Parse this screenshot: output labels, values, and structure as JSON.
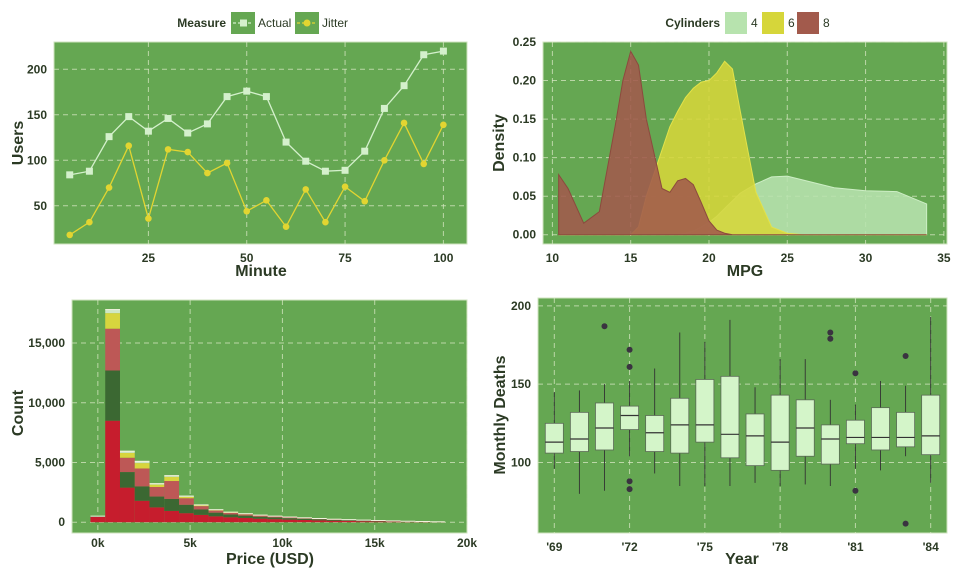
{
  "colors": {
    "panel": "#65a752",
    "frame": "#cfe3bf",
    "text": "#2b3a24",
    "actual": "#d4f0cc",
    "jitter": "#e2d531",
    "cyl4": "#b7e3ae",
    "cyl6": "#d6d63a",
    "cyl8": "#a25a4c",
    "hist_red": "#c61d2d",
    "hist_green": "#3b6832",
    "hist_rose": "#bd5856",
    "hist_yellow": "#d7d53e",
    "hist_pale": "#cfe7c4",
    "box_fill": "#d4f5c9",
    "box_line": "#333333",
    "outlier": "#3a3340"
  },
  "chart_data": [
    {
      "id": "users-line",
      "type": "line",
      "legend_title": "Measure",
      "xlabel": "Minute",
      "ylabel": "Users",
      "xlim": [
        1,
        106
      ],
      "ylim": [
        8,
        230
      ],
      "xticks": [
        25,
        50,
        75,
        100
      ],
      "yticks": [
        50,
        100,
        150,
        200
      ],
      "x": [
        5,
        10,
        15,
        20,
        25,
        30,
        35,
        40,
        45,
        50,
        55,
        60,
        65,
        70,
        75,
        80,
        85,
        90,
        95,
        100
      ],
      "series": [
        {
          "name": "Actual",
          "values": [
            84,
            88,
            126,
            148,
            132,
            146,
            130,
            140,
            170,
            176,
            170,
            120,
            99,
            88,
            89,
            110,
            157,
            182,
            216,
            220
          ]
        },
        {
          "name": "Jitter",
          "values": [
            18,
            32,
            70,
            116,
            36,
            112,
            109,
            86,
            97,
            44,
            56,
            27,
            68,
            32,
            71,
            55,
            100,
            141,
            96,
            139
          ]
        }
      ]
    },
    {
      "id": "mpg-density",
      "type": "area",
      "legend_title": "Cylinders",
      "xlabel": "MPG",
      "ylabel": "Density",
      "xlim": [
        9.4,
        35.2
      ],
      "ylim": [
        -0.012,
        0.25
      ],
      "xticks": [
        10,
        15,
        20,
        25,
        30,
        35
      ],
      "yticks": [
        0.0,
        0.05,
        0.1,
        0.15,
        0.2,
        0.25
      ],
      "x": [
        10.4,
        11,
        12,
        13,
        14,
        14.5,
        15,
        15.5,
        16,
        17,
        17.5,
        18,
        18.5,
        19,
        19.5,
        20,
        20.5,
        21,
        21.5,
        22,
        23,
        24,
        25,
        26,
        28,
        30,
        32,
        33.9
      ],
      "series": [
        {
          "name": "4",
          "values": [
            0,
            0,
            0,
            0,
            0,
            0,
            0,
            0,
            0,
            0,
            0,
            0,
            0.002,
            0.005,
            0.01,
            0.016,
            0.024,
            0.034,
            0.044,
            0.054,
            0.066,
            0.075,
            0.076,
            0.071,
            0.061,
            0.057,
            0.056,
            0.04
          ]
        },
        {
          "name": "6",
          "values": [
            0,
            0,
            0,
            0,
            0,
            0,
            0,
            0.01,
            0.05,
            0.11,
            0.14,
            0.16,
            0.178,
            0.19,
            0.198,
            0.2,
            0.21,
            0.225,
            0.215,
            0.16,
            0.055,
            0.01,
            0.002,
            0,
            0,
            0,
            0,
            0
          ]
        },
        {
          "name": "8",
          "values": [
            0.078,
            0.06,
            0.015,
            0.03,
            0.14,
            0.2,
            0.238,
            0.22,
            0.15,
            0.06,
            0.055,
            0.07,
            0.073,
            0.065,
            0.042,
            0.018,
            0.006,
            0.002,
            0,
            0,
            0,
            0,
            0,
            0,
            0,
            0,
            0,
            0
          ]
        }
      ]
    },
    {
      "id": "price-hist",
      "type": "bar",
      "stacked": true,
      "xlabel": "Price (USD)",
      "ylabel": "Count",
      "xlim": [
        -1400,
        20000
      ],
      "ylim": [
        -900,
        18600
      ],
      "xticks": [
        0,
        5000,
        10000,
        15000,
        20000
      ],
      "xtick_labels": [
        "0k",
        "5k",
        "10k",
        "15k",
        "20k"
      ],
      "yticks": [
        0,
        5000,
        10000,
        15000
      ],
      "ytick_labels": [
        "0",
        "5,000",
        "10,000",
        "15,000"
      ],
      "bin_start": -400,
      "bin_width": 800,
      "series": [
        {
          "name": "Red",
          "values": [
            450,
            8500,
            2900,
            1800,
            1250,
            950,
            760,
            620,
            500,
            420,
            360,
            300,
            260,
            220,
            190,
            160,
            130,
            110,
            90,
            70,
            55,
            40,
            30,
            20
          ]
        },
        {
          "name": "Dark green",
          "values": [
            50,
            4200,
            1300,
            1200,
            900,
            1000,
            700,
            450,
            300,
            230,
            190,
            160,
            140,
            120,
            100,
            85,
            70,
            60,
            50,
            40,
            30,
            25,
            18,
            10
          ]
        },
        {
          "name": "Rose",
          "values": [
            10,
            3500,
            1200,
            1500,
            800,
            1500,
            550,
            280,
            180,
            140,
            120,
            100,
            80,
            70,
            60,
            50,
            40,
            35,
            30,
            25,
            20,
            15,
            10,
            5
          ]
        },
        {
          "name": "Yellow",
          "values": [
            0,
            1300,
            400,
            450,
            200,
            350,
            120,
            60,
            40,
            30,
            25,
            20,
            18,
            15,
            12,
            10,
            8,
            6,
            5,
            4,
            3,
            2,
            2,
            1
          ]
        },
        {
          "name": "Pale",
          "values": [
            0,
            300,
            150,
            150,
            80,
            100,
            60,
            40,
            30,
            25,
            20,
            18,
            15,
            12,
            10,
            8,
            6,
            5,
            4,
            3,
            2,
            2,
            1,
            1
          ]
        }
      ]
    },
    {
      "id": "deaths-box",
      "type": "box",
      "xlabel": "Year",
      "ylabel": "Monthly Deaths",
      "xlim": [
        1968.35,
        1984.65
      ],
      "ylim": [
        55,
        205
      ],
      "xticks": [
        1969,
        1972,
        1975,
        1978,
        1981,
        1984
      ],
      "xtick_labels": [
        "'69",
        "'72",
        "'75",
        "'78",
        "'81",
        "'84"
      ],
      "yticks": [
        100,
        150,
        200
      ],
      "years": [
        1969,
        1970,
        1971,
        1972,
        1973,
        1974,
        1975,
        1976,
        1977,
        1978,
        1979,
        1980,
        1981,
        1982,
        1983,
        1984
      ],
      "boxes": [
        {
          "low": 96,
          "q1": 106,
          "median": 113,
          "q3": 125,
          "high": 145,
          "outliers": []
        },
        {
          "low": 80,
          "q1": 107,
          "median": 115,
          "q3": 132,
          "high": 146,
          "outliers": []
        },
        {
          "low": 82,
          "q1": 108,
          "median": 122,
          "q3": 138,
          "high": 150,
          "outliers": [
            187
          ]
        },
        {
          "low": 104,
          "q1": 121,
          "median": 130,
          "q3": 136,
          "high": 152,
          "outliers": [
            172,
            161,
            88,
            83
          ]
        },
        {
          "low": 93,
          "q1": 107,
          "median": 119,
          "q3": 130,
          "high": 160,
          "outliers": []
        },
        {
          "low": 85,
          "q1": 106,
          "median": 124,
          "q3": 141,
          "high": 183,
          "outliers": []
        },
        {
          "low": 85,
          "q1": 113,
          "median": 124,
          "q3": 153,
          "high": 177,
          "outliers": []
        },
        {
          "low": 85,
          "q1": 103,
          "median": 118,
          "q3": 155,
          "high": 191,
          "outliers": []
        },
        {
          "low": 87,
          "q1": 98,
          "median": 117,
          "q3": 131,
          "high": 148,
          "outliers": []
        },
        {
          "low": 85,
          "q1": 95,
          "median": 113,
          "q3": 143,
          "high": 166,
          "outliers": []
        },
        {
          "low": 86,
          "q1": 104,
          "median": 122,
          "q3": 140,
          "high": 166,
          "outliers": []
        },
        {
          "low": 85,
          "q1": 99,
          "median": 115,
          "q3": 124,
          "high": 140,
          "outliers": [
            183,
            179
          ]
        },
        {
          "low": 96,
          "q1": 112,
          "median": 116,
          "q3": 127,
          "high": 137,
          "outliers": [
            157,
            82
          ]
        },
        {
          "low": 95,
          "q1": 108,
          "median": 116,
          "q3": 135,
          "high": 152,
          "outliers": []
        },
        {
          "low": 104,
          "q1": 110,
          "median": 116,
          "q3": 132,
          "high": 149,
          "outliers": [
            168,
            61
          ]
        },
        {
          "low": 87,
          "q1": 105,
          "median": 117,
          "q3": 143,
          "high": 193,
          "outliers": []
        }
      ]
    }
  ]
}
